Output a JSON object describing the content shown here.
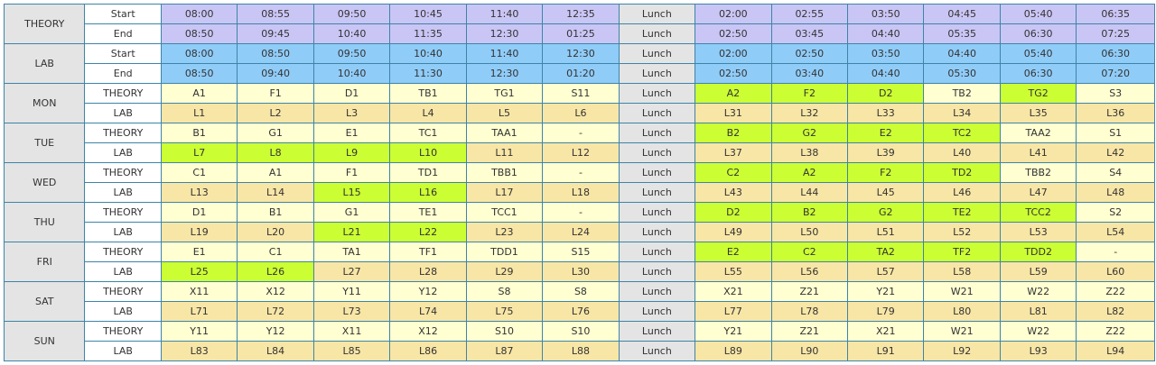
{
  "colors": {
    "theory_time_bg": "#c9c6f5",
    "lab_time_bg": "#90ccf8",
    "theory_cell_bg": "#ffffd2",
    "lab_cell_bg": "#f8e6a6",
    "highlight_bg": "#ccff33",
    "lunch_bg": "#e4e4e4",
    "border": "#3d84a8"
  },
  "lunch_label": "Lunch",
  "header": [
    {
      "group": "THEORY",
      "rows": [
        {
          "label": "Start",
          "times": [
            "08:00",
            "08:55",
            "09:50",
            "10:45",
            "11:40",
            "12:35",
            "02:00",
            "02:55",
            "03:50",
            "04:45",
            "05:40",
            "06:35"
          ]
        },
        {
          "label": "End",
          "times": [
            "08:50",
            "09:45",
            "10:40",
            "11:35",
            "12:30",
            "01:25",
            "02:50",
            "03:45",
            "04:40",
            "05:35",
            "06:30",
            "07:25"
          ]
        }
      ]
    },
    {
      "group": "LAB",
      "rows": [
        {
          "label": "Start",
          "times": [
            "08:00",
            "08:50",
            "09:50",
            "10:40",
            "11:40",
            "12:30",
            "02:00",
            "02:50",
            "03:50",
            "04:40",
            "05:40",
            "06:30"
          ]
        },
        {
          "label": "End",
          "times": [
            "08:50",
            "09:40",
            "10:40",
            "11:30",
            "12:30",
            "01:20",
            "02:50",
            "03:40",
            "04:40",
            "05:30",
            "06:30",
            "07:20"
          ]
        }
      ]
    }
  ],
  "days": [
    {
      "name": "MON",
      "theory_label": "THEORY",
      "theory": [
        "A1",
        "F1",
        "D1",
        "TB1",
        "TG1",
        "S11",
        "A2",
        "F2",
        "D2",
        "TB2",
        "TG2",
        "S3"
      ],
      "theory_hl": [
        false,
        false,
        false,
        false,
        false,
        false,
        true,
        true,
        true,
        false,
        true,
        false
      ],
      "lab_label": "LAB",
      "lab": [
        "L1",
        "L2",
        "L3",
        "L4",
        "L5",
        "L6",
        "L31",
        "L32",
        "L33",
        "L34",
        "L35",
        "L36"
      ],
      "lab_hl": [
        false,
        false,
        false,
        false,
        false,
        false,
        false,
        false,
        false,
        false,
        false,
        false
      ]
    },
    {
      "name": "TUE",
      "theory_label": "THEORY",
      "theory": [
        "B1",
        "G1",
        "E1",
        "TC1",
        "TAA1",
        "-",
        "B2",
        "G2",
        "E2",
        "TC2",
        "TAA2",
        "S1"
      ],
      "theory_hl": [
        false,
        false,
        false,
        false,
        false,
        false,
        true,
        true,
        true,
        true,
        false,
        false
      ],
      "lab_label": "LAB",
      "lab": [
        "L7",
        "L8",
        "L9",
        "L10",
        "L11",
        "L12",
        "L37",
        "L38",
        "L39",
        "L40",
        "L41",
        "L42"
      ],
      "lab_hl": [
        true,
        true,
        true,
        true,
        false,
        false,
        false,
        false,
        false,
        false,
        false,
        false
      ]
    },
    {
      "name": "WED",
      "theory_label": "THEORY",
      "theory": [
        "C1",
        "A1",
        "F1",
        "TD1",
        "TBB1",
        "-",
        "C2",
        "A2",
        "F2",
        "TD2",
        "TBB2",
        "S4"
      ],
      "theory_hl": [
        false,
        false,
        false,
        false,
        false,
        false,
        true,
        true,
        true,
        true,
        false,
        false
      ],
      "lab_label": "LAB",
      "lab": [
        "L13",
        "L14",
        "L15",
        "L16",
        "L17",
        "L18",
        "L43",
        "L44",
        "L45",
        "L46",
        "L47",
        "L48"
      ],
      "lab_hl": [
        false,
        false,
        true,
        true,
        false,
        false,
        false,
        false,
        false,
        false,
        false,
        false
      ]
    },
    {
      "name": "THU",
      "theory_label": "THEORY",
      "theory": [
        "D1",
        "B1",
        "G1",
        "TE1",
        "TCC1",
        "-",
        "D2",
        "B2",
        "G2",
        "TE2",
        "TCC2",
        "S2"
      ],
      "theory_hl": [
        false,
        false,
        false,
        false,
        false,
        false,
        true,
        true,
        true,
        true,
        true,
        false
      ],
      "lab_label": "LAB",
      "lab": [
        "L19",
        "L20",
        "L21",
        "L22",
        "L23",
        "L24",
        "L49",
        "L50",
        "L51",
        "L52",
        "L53",
        "L54"
      ],
      "lab_hl": [
        false,
        false,
        true,
        true,
        false,
        false,
        false,
        false,
        false,
        false,
        false,
        false
      ]
    },
    {
      "name": "FRI",
      "theory_label": "THEORY",
      "theory": [
        "E1",
        "C1",
        "TA1",
        "TF1",
        "TDD1",
        "S15",
        "E2",
        "C2",
        "TA2",
        "TF2",
        "TDD2",
        "-"
      ],
      "theory_hl": [
        false,
        false,
        false,
        false,
        false,
        false,
        true,
        true,
        true,
        true,
        true,
        false
      ],
      "lab_label": "LAB",
      "lab": [
        "L25",
        "L26",
        "L27",
        "L28",
        "L29",
        "L30",
        "L55",
        "L56",
        "L57",
        "L58",
        "L59",
        "L60"
      ],
      "lab_hl": [
        true,
        true,
        false,
        false,
        false,
        false,
        false,
        false,
        false,
        false,
        false,
        false
      ]
    },
    {
      "name": "SAT",
      "theory_label": "THEORY",
      "theory": [
        "X11",
        "X12",
        "Y11",
        "Y12",
        "S8",
        "S8",
        "X21",
        "Z21",
        "Y21",
        "W21",
        "W22",
        "Z22"
      ],
      "theory_hl": [
        false,
        false,
        false,
        false,
        false,
        false,
        false,
        false,
        false,
        false,
        false,
        false
      ],
      "lab_label": "LAB",
      "lab": [
        "L71",
        "L72",
        "L73",
        "L74",
        "L75",
        "L76",
        "L77",
        "L78",
        "L79",
        "L80",
        "L81",
        "L82"
      ],
      "lab_hl": [
        false,
        false,
        false,
        false,
        false,
        false,
        false,
        false,
        false,
        false,
        false,
        false
      ]
    },
    {
      "name": "SUN",
      "theory_label": "THEORY",
      "theory": [
        "Y11",
        "Y12",
        "X11",
        "X12",
        "S10",
        "S10",
        "Y21",
        "Z21",
        "X21",
        "W21",
        "W22",
        "Z22"
      ],
      "theory_hl": [
        false,
        false,
        false,
        false,
        false,
        false,
        false,
        false,
        false,
        false,
        false,
        false
      ],
      "lab_label": "LAB",
      "lab": [
        "L83",
        "L84",
        "L85",
        "L86",
        "L87",
        "L88",
        "L89",
        "L90",
        "L91",
        "L92",
        "L93",
        "L94"
      ],
      "lab_hl": [
        false,
        false,
        false,
        false,
        false,
        false,
        false,
        false,
        false,
        false,
        false,
        false
      ]
    }
  ]
}
